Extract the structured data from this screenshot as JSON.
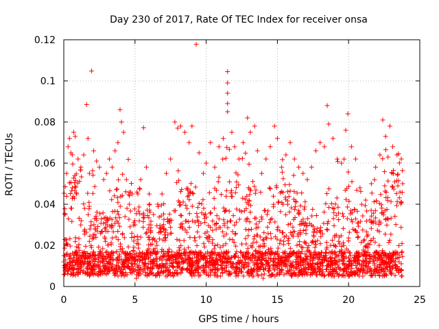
{
  "chart_data": {
    "type": "scatter",
    "title": "Day 230 of 2017, Rate Of TEC Index for receiver onsa",
    "xlabel": "GPS time / hours",
    "ylabel": "ROTI / TECUs",
    "xlim": [
      0,
      25
    ],
    "ylim": [
      0,
      0.12
    ],
    "xticks": [
      0,
      5,
      10,
      15,
      20,
      25
    ],
    "yticks": [
      0,
      0.02,
      0.04,
      0.06,
      0.08,
      0.1,
      0.12
    ],
    "xtick_labels": [
      "0",
      "5",
      "10",
      "15",
      "20",
      "25"
    ],
    "ytick_labels": [
      "0",
      "0.02",
      "0.04",
      "0.06",
      "0.08",
      "0.1",
      "0.12"
    ],
    "grid": true,
    "marker": "plus",
    "color": "#ff0000",
    "series": [
      {
        "points": [
          [
            0.0,
            0.012
          ],
          [
            0.1,
            0.035
          ],
          [
            0.2,
            0.055
          ],
          [
            0.3,
            0.068
          ],
          [
            0.4,
            0.072
          ],
          [
            0.5,
            0.065
          ],
          [
            0.6,
            0.048
          ],
          [
            0.7,
            0.075
          ],
          [
            0.8,
            0.073
          ],
          [
            0.9,
            0.045
          ],
          [
            1.0,
            0.062
          ],
          [
            1.2,
            0.058
          ],
          [
            1.4,
            0.064
          ],
          [
            1.6,
            0.0885
          ],
          [
            1.7,
            0.072
          ],
          [
            1.8,
            0.055
          ],
          [
            1.95,
            0.1048
          ],
          [
            2.1,
            0.066
          ],
          [
            2.3,
            0.061
          ],
          [
            2.5,
            0.058
          ],
          [
            2.8,
            0.052
          ],
          [
            3.0,
            0.055
          ],
          [
            3.2,
            0.062
          ],
          [
            3.4,
            0.058
          ],
          [
            3.6,
            0.066
          ],
          [
            3.8,
            0.07
          ],
          [
            3.95,
            0.086
          ],
          [
            4.05,
            0.08
          ],
          [
            4.2,
            0.075
          ],
          [
            4.4,
            0.052
          ],
          [
            4.6,
            0.04
          ],
          [
            4.8,
            0.045
          ],
          [
            5.0,
            0.03
          ],
          [
            5.2,
            0.045
          ],
          [
            5.4,
            0.052
          ],
          [
            5.6,
            0.0772
          ],
          [
            5.8,
            0.058
          ],
          [
            6.0,
            0.045
          ],
          [
            6.3,
            0.035
          ],
          [
            6.6,
            0.04
          ],
          [
            6.9,
            0.045
          ],
          [
            7.2,
            0.055
          ],
          [
            7.5,
            0.062
          ],
          [
            7.8,
            0.08
          ],
          [
            8.0,
            0.077
          ],
          [
            8.2,
            0.078
          ],
          [
            8.5,
            0.075
          ],
          [
            8.8,
            0.07
          ],
          [
            9.0,
            0.078
          ],
          [
            9.3,
            0.1178
          ],
          [
            9.5,
            0.065
          ],
          [
            9.8,
            0.055
          ],
          [
            10.0,
            0.06
          ],
          [
            10.3,
            0.07
          ],
          [
            10.6,
            0.058
          ],
          [
            10.9,
            0.068
          ],
          [
            11.2,
            0.072
          ],
          [
            11.5,
            0.1045
          ],
          [
            11.5,
            0.099
          ],
          [
            11.5,
            0.094
          ],
          [
            11.5,
            0.089
          ],
          [
            11.5,
            0.085
          ],
          [
            11.8,
            0.075
          ],
          [
            12.0,
            0.068
          ],
          [
            12.3,
            0.062
          ],
          [
            12.6,
            0.07
          ],
          [
            12.9,
            0.082
          ],
          [
            13.1,
            0.075
          ],
          [
            13.4,
            0.078
          ],
          [
            13.6,
            0.066
          ],
          [
            13.9,
            0.055
          ],
          [
            14.2,
            0.062
          ],
          [
            14.5,
            0.068
          ],
          [
            14.8,
            0.078
          ],
          [
            15.0,
            0.072
          ],
          [
            15.3,
            0.058
          ],
          [
            15.6,
            0.064
          ],
          [
            15.9,
            0.07
          ],
          [
            16.2,
            0.062
          ],
          [
            16.5,
            0.058
          ],
          [
            16.8,
            0.055
          ],
          [
            17.1,
            0.052
          ],
          [
            17.4,
            0.058
          ],
          [
            17.7,
            0.066
          ],
          [
            18.0,
            0.07
          ],
          [
            18.3,
            0.068
          ],
          [
            18.5,
            0.088
          ],
          [
            18.6,
            0.079
          ],
          [
            18.9,
            0.072
          ],
          [
            19.2,
            0.062
          ],
          [
            19.5,
            0.06
          ],
          [
            19.8,
            0.076
          ],
          [
            19.95,
            0.084
          ],
          [
            20.2,
            0.068
          ],
          [
            20.5,
            0.062
          ],
          [
            20.8,
            0.048
          ],
          [
            21.2,
            0.042
          ],
          [
            21.6,
            0.05
          ],
          [
            21.9,
            0.058
          ],
          [
            22.2,
            0.064
          ],
          [
            22.4,
            0.081
          ],
          [
            22.6,
            0.073
          ],
          [
            22.9,
            0.078
          ],
          [
            23.1,
            0.068
          ],
          [
            23.4,
            0.064
          ],
          [
            23.7,
            0.062
          ],
          [
            23.8,
            0.05
          ],
          [
            0.1,
            0.008
          ],
          [
            1.0,
            0.006
          ],
          [
            2.0,
            0.008
          ],
          [
            3.0,
            0.006
          ],
          [
            4.0,
            0.007
          ],
          [
            5.1,
            0.004
          ],
          [
            6.0,
            0.006
          ],
          [
            7.0,
            0.007
          ],
          [
            8.0,
            0.006
          ],
          [
            9.0,
            0.005
          ],
          [
            10.0,
            0.006
          ],
          [
            11.0,
            0.005
          ],
          [
            12.0,
            0.007
          ],
          [
            13.0,
            0.006
          ],
          [
            14.0,
            0.004
          ],
          [
            15.0,
            0.006
          ],
          [
            16.0,
            0.005
          ],
          [
            17.0,
            0.007
          ],
          [
            18.0,
            0.006
          ],
          [
            19.0,
            0.005
          ],
          [
            20.0,
            0.006
          ],
          [
            21.0,
            0.005
          ],
          [
            22.0,
            0.007
          ],
          [
            23.0,
            0.006
          ],
          [
            23.7,
            0.008
          ]
        ]
      }
    ]
  }
}
